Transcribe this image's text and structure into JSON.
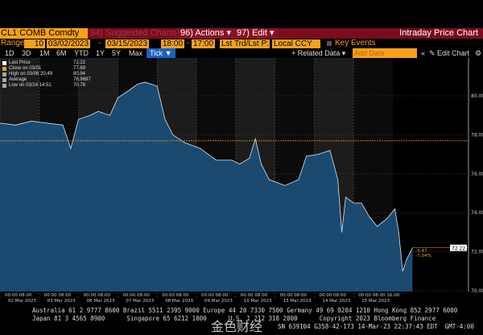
{
  "header": {
    "ticker": "CL1 COMB Comdty",
    "suggested": "94) Suggested Charts",
    "actions": "96) Actions ▾",
    "edit": "97) Edit ▾",
    "title": "Intraday Price Chart"
  },
  "controls": {
    "range_label": "Range",
    "range_value": "10",
    "start_date": "03/02/2023",
    "end_date": "03/15/2023",
    "start_time": "18:00",
    "end_time": "17:00",
    "price_type": "Lst Trd/Lst P:",
    "currency": "Local CCY",
    "key_events": "Key Events",
    "dash": "-"
  },
  "periods": [
    "1D",
    "3D",
    "1M",
    "6M",
    "YTD",
    "1Y",
    "5Y",
    "Max"
  ],
  "tick_label": "Tick ▼",
  "related_data": "+ Related Data ▾",
  "add_data_placeholder": "Add Data",
  "edit_chart": "✎ Edit Chart",
  "legend": [
    {
      "name": "Last Price",
      "value": "72.22",
      "color": "#ffffff"
    },
    {
      "name": "Close on 03/01",
      "value": "77.69",
      "color": "#f7a11a"
    },
    {
      "name": "High on 03/06 20:49",
      "value": "80.94",
      "color": "#aaaaaa"
    },
    {
      "name": "Average",
      "value": "76.9687",
      "color": "#aaaaaa"
    },
    {
      "name": "Low on 03/14 14:51",
      "value": "70.78",
      "color": "#aaaaaa"
    }
  ],
  "change": {
    "abs": "-5.47",
    "pct": "-7.04%"
  },
  "colors": {
    "fill": "#1b4a70",
    "line": "#d8e4f0",
    "ref": "#f7a11a"
  },
  "chart_data": {
    "type": "area",
    "ylim": [
      69.8,
      81.4
    ],
    "yticks": [
      "70.00",
      "72.00",
      "74.00",
      "76.00",
      "78.00",
      "80.00"
    ],
    "last_label": "72.22",
    "reference_close": 77.69,
    "days": [
      "02 Mar 2023",
      "03 Mar 2023",
      "06 Mar 2023",
      "07 Mar 2023",
      "08 Mar 2023",
      "09 Mar 2023",
      "10 Mar 2023",
      "13 Mar 2023",
      "14 Mar 2023",
      "15 Mar 2023"
    ],
    "time_ticks": "00:00  08:00",
    "last_time_ticks": "00:00  08:00  16:00",
    "points": [
      [
        0,
        78.6
      ],
      [
        0.4,
        78.5
      ],
      [
        0.8,
        78.7
      ],
      [
        1.2,
        78.6
      ],
      [
        1.6,
        78.5
      ],
      [
        1.8,
        77.3
      ],
      [
        2.0,
        78.8
      ],
      [
        2.3,
        79.0
      ],
      [
        2.5,
        79.2
      ],
      [
        2.8,
        79.0
      ],
      [
        3.0,
        79.9
      ],
      [
        3.3,
        80.3
      ],
      [
        3.5,
        80.6
      ],
      [
        3.7,
        80.7
      ],
      [
        4.0,
        80.5
      ],
      [
        4.2,
        78.8
      ],
      [
        4.4,
        78.0
      ],
      [
        4.7,
        77.6
      ],
      [
        5.1,
        77.3
      ],
      [
        5.5,
        76.7
      ],
      [
        5.9,
        76.7
      ],
      [
        6.1,
        76.5
      ],
      [
        6.35,
        76.8
      ],
      [
        6.5,
        77.8
      ],
      [
        6.65,
        76.5
      ],
      [
        6.85,
        75.7
      ],
      [
        7.25,
        75.4
      ],
      [
        7.6,
        75.7
      ],
      [
        7.8,
        76.9
      ],
      [
        8.1,
        77.0
      ],
      [
        8.4,
        77.2
      ],
      [
        8.6,
        75.7
      ],
      [
        8.7,
        73.0
      ],
      [
        8.8,
        74.8
      ],
      [
        9.0,
        74.5
      ],
      [
        9.2,
        74.5
      ],
      [
        9.4,
        73.8
      ],
      [
        9.6,
        73.3
      ],
      [
        9.85,
        73.7
      ],
      [
        10.05,
        74.2
      ],
      [
        10.15,
        73.0
      ],
      [
        10.25,
        71.0
      ],
      [
        10.35,
        71.6
      ],
      [
        10.5,
        72.2
      ]
    ]
  },
  "footer": {
    "line1": "Australia 61 2 9777 8600 Brazil 5511 2395 9000 Europe 44 20 7330 7500 Germany 49 69 9204 1210 Hong Kong 852 2977 6000",
    "line2": "Japan 81 3 4565 8900      Singapore 65 6212 1000      U.S. 1 212 318 2000      Copyright 2023 Bloomberg Finance",
    "line3": "SN 639104 G358-42-173 14-Mar-23 22:37:43 EDT  GMT-4:00",
    "watermark": "金色财经"
  }
}
